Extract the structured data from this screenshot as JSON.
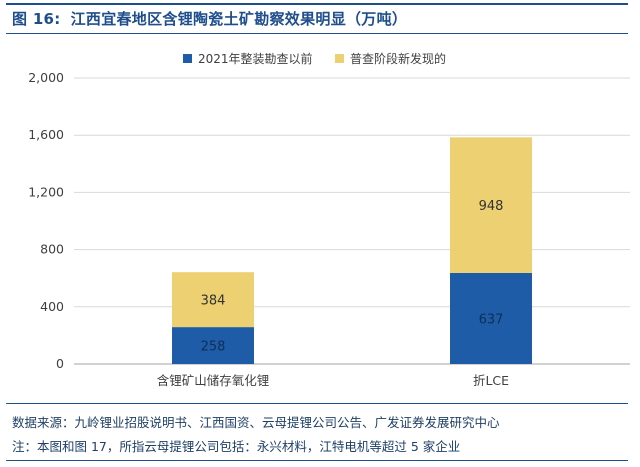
{
  "figure": {
    "label": "图 16:",
    "title": "江西宜春地区含锂陶瓷土矿勘察效果明显（万吨）"
  },
  "chart_data": {
    "type": "bar",
    "stacked": true,
    "categories": [
      "含锂矿山储存氧化锂",
      "折LCE"
    ],
    "series": [
      {
        "name": "2021年整装勘查以前",
        "values": [
          258,
          637
        ],
        "color": "#1f5ca8"
      },
      {
        "name": "普查阶段新发现的",
        "values": [
          384,
          948
        ],
        "color": "#ecd071"
      }
    ],
    "yticks": [
      "0",
      "400",
      "800",
      "1,200",
      "1,600",
      "2,000"
    ],
    "ylim": [
      0,
      2000
    ],
    "legend_position": "top",
    "grid": "horizontal"
  },
  "notes": {
    "source": "数据来源：九岭锂业招股说明书、江西国资、云母提锂公司公告、广发证券发展研究中心",
    "note": "注：本图和图 17，所指云母提锂公司包括：永兴材料，江特电机等超过 5 家企业"
  }
}
